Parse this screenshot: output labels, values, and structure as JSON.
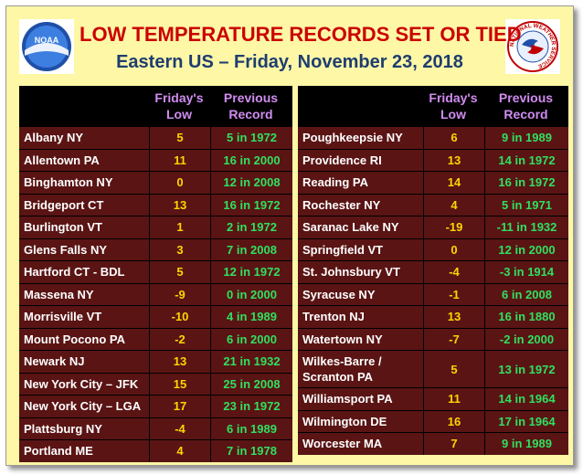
{
  "title": "LOW TEMPERATURE RECORDS SET OR TIED",
  "subtitle": "Eastern US – Friday, November 23, 2018",
  "logos": {
    "left": {
      "text": "NOAA"
    },
    "right": {
      "text": "NATIONAL WEATHER SERVICE"
    }
  },
  "headers": {
    "low": [
      "Friday's",
      "Low"
    ],
    "record": [
      "Previous",
      "Record"
    ]
  },
  "colors": {
    "background": "#fdf7a6",
    "title": "#cc0000",
    "subtitle": "#1e3d70",
    "row": "#5a1414",
    "header_text": "#d08cf0",
    "low_text": "#ffd400",
    "record_text": "#30e060"
  },
  "left_table": [
    {
      "city": "Albany NY",
      "low": "5",
      "record": "5 in 1972"
    },
    {
      "city": "Allentown PA",
      "low": "11",
      "record": "16 in 2000"
    },
    {
      "city": "Binghamton NY",
      "low": "0",
      "record": "12 in 2008"
    },
    {
      "city": "Bridgeport CT",
      "low": "13",
      "record": "16 in 1972"
    },
    {
      "city": "Burlington VT",
      "low": "1",
      "record": "2 in 1972"
    },
    {
      "city": "Glens Falls NY",
      "low": "3",
      "record": "7 in 2008"
    },
    {
      "city": "Hartford CT - BDL",
      "low": "5",
      "record": "12 in 1972"
    },
    {
      "city": "Massena NY",
      "low": "-9",
      "record": "0 in 2000"
    },
    {
      "city": "Morrisville VT",
      "low": "-10",
      "record": "4 in 1989"
    },
    {
      "city": "Mount Pocono PA",
      "low": "-2",
      "record": "6 in 2000"
    },
    {
      "city": "Newark NJ",
      "low": "13",
      "record": "21 in 1932"
    },
    {
      "city": "New York City – JFK",
      "low": "15",
      "record": "25 in 2008"
    },
    {
      "city": "New York City – LGA",
      "low": "17",
      "record": "23 in 1972"
    },
    {
      "city": "Plattsburg NY",
      "low": "-4",
      "record": "6 in 1989"
    },
    {
      "city": "Portland ME",
      "low": "4",
      "record": "7 in 1978"
    }
  ],
  "right_table": [
    {
      "city": "Poughkeepsie NY",
      "low": "6",
      "record": "9 in 1989"
    },
    {
      "city": "Providence RI",
      "low": "13",
      "record": "14 in 1972"
    },
    {
      "city": "Reading PA",
      "low": "14",
      "record": "16 in 1972"
    },
    {
      "city": "Rochester NY",
      "low": "4",
      "record": "5 in 1971"
    },
    {
      "city": "Saranac Lake NY",
      "low": "-19",
      "record": "-11 in 1932"
    },
    {
      "city": "Springfield VT",
      "low": "0",
      "record": "12 in 2000"
    },
    {
      "city": "St. Johnsbury VT",
      "low": "-4",
      "record": "-3 in 1914"
    },
    {
      "city": "Syracuse NY",
      "low": "-1",
      "record": "6 in 2008"
    },
    {
      "city": "Trenton NJ",
      "low": "13",
      "record": "16 in 1880"
    },
    {
      "city": "Watertown NY",
      "low": "-7",
      "record": "-2 in 2000"
    },
    {
      "city": "Wilkes-Barre / Scranton PA",
      "city_lines": [
        "Wilkes-Barre /",
        "Scranton PA"
      ],
      "low": "5",
      "record": "13 in 1972"
    },
    {
      "city": "Williamsport PA",
      "low": "11",
      "record": "14 in 1964"
    },
    {
      "city": "Wilmington DE",
      "low": "16",
      "record": "17 in 1964"
    },
    {
      "city": "Worcester MA",
      "low": "7",
      "record": "9 in 1989"
    }
  ]
}
